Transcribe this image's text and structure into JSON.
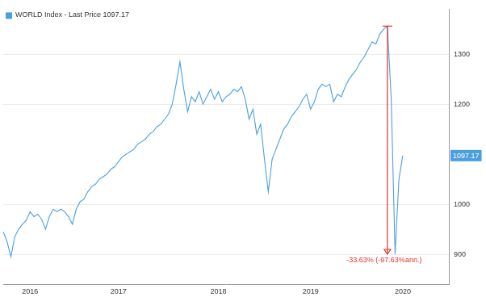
{
  "chart_data": {
    "type": "line",
    "categories": [
      null,
      null,
      null,
      null,
      null,
      null,
      null,
      "2016",
      null,
      null,
      null,
      null,
      null,
      null,
      null,
      null,
      null,
      null,
      null,
      null,
      null,
      null,
      null,
      null,
      null,
      null,
      null,
      null,
      null,
      null,
      "2017",
      null,
      null,
      null,
      null,
      null,
      null,
      null,
      null,
      null,
      null,
      null,
      null,
      null,
      null,
      null,
      null,
      null,
      null,
      null,
      null,
      null,
      null,
      null,
      null,
      null,
      "2018",
      null,
      null,
      null,
      null,
      null,
      null,
      null,
      null,
      null,
      null,
      null,
      null,
      null,
      null,
      null,
      null,
      null,
      null,
      null,
      null,
      null,
      null,
      null,
      "2019",
      null,
      null,
      null,
      null,
      null,
      null,
      null,
      null,
      null,
      null,
      null,
      null,
      null,
      null,
      null,
      null,
      null,
      null,
      null,
      null,
      null,
      null,
      null,
      "2020",
      null,
      null,
      null,
      null,
      null,
      null,
      null,
      null,
      null,
      null,
      null,
      null
    ],
    "series": [
      {
        "name": "WORLD Index - Last Price 1097.17",
        "color": "#4a9fe0",
        "values": [
          945,
          925,
          895,
          935,
          950,
          960,
          968,
          985,
          975,
          980,
          970,
          950,
          975,
          990,
          985,
          990,
          985,
          975,
          960,
          990,
          1005,
          1010,
          1025,
          1035,
          1040,
          1050,
          1055,
          1060,
          1070,
          1075,
          1085,
          1095,
          1100,
          1105,
          1110,
          1120,
          1125,
          1130,
          1140,
          1145,
          1155,
          1160,
          1170,
          1180,
          1200,
          1240,
          1285,
          1230,
          1185,
          1215,
          1205,
          1225,
          1200,
          1215,
          1230,
          1210,
          1225,
          1205,
          1215,
          1220,
          1230,
          1225,
          1235,
          1210,
          1170,
          1190,
          1140,
          1160,
          1090,
          1025,
          1090,
          1110,
          1130,
          1150,
          1160,
          1175,
          1185,
          1195,
          1210,
          1220,
          1190,
          1205,
          1230,
          1240,
          1235,
          1240,
          1205,
          1220,
          1215,
          1235,
          1250,
          1260,
          1270,
          1285,
          1295,
          1310,
          1325,
          1320,
          1340,
          1350,
          1356,
          1210,
          900,
          1050,
          1097.17,
          null,
          null,
          null,
          null,
          null,
          null,
          null,
          null,
          null,
          null,
          null,
          null
        ]
      }
    ],
    "ylim": [
      840,
      1390
    ],
    "yticks": [
      900,
      1000,
      1200,
      1300
    ],
    "grid": true,
    "legend": "top-left",
    "annotation": "-33.63% (-97.63%ann.)"
  }
}
